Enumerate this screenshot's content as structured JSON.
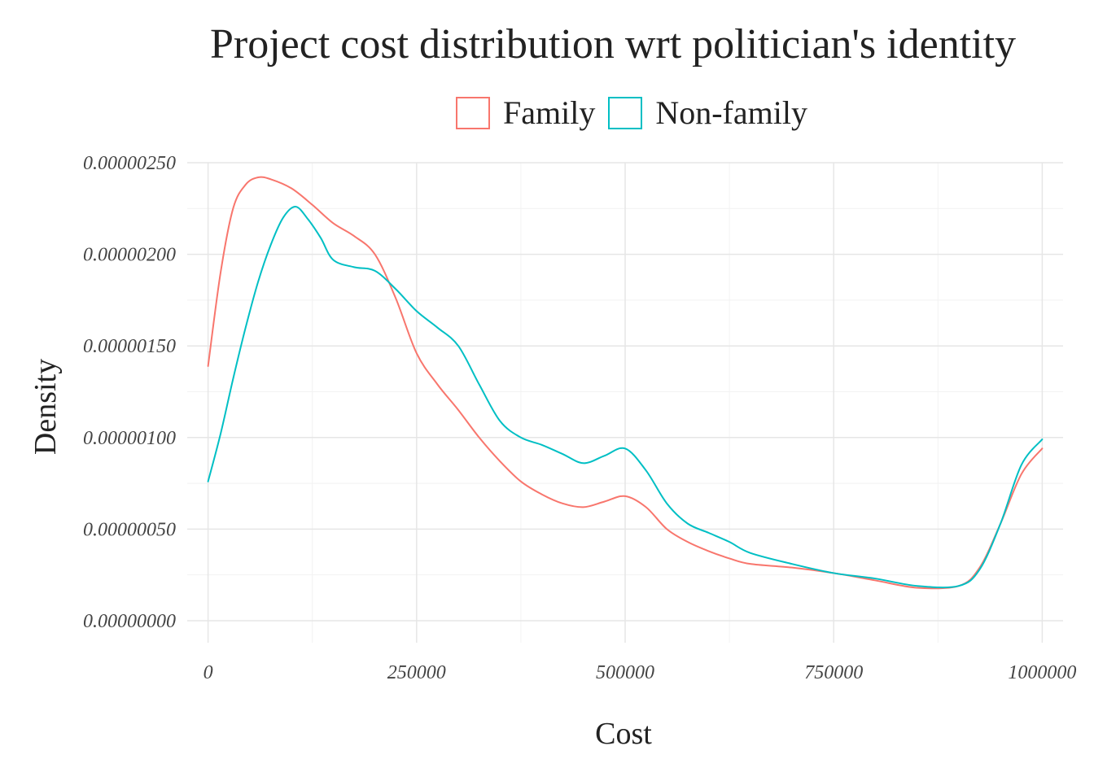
{
  "chart_data": {
    "type": "line",
    "title": "Project cost distribution wrt politician's identity",
    "xlabel": "Cost",
    "ylabel": "Density",
    "xlim": [
      -25000,
      1025000
    ],
    "ylim": [
      -1.2e-07,
      2.5e-06
    ],
    "x_ticks": [
      0,
      250000,
      500000,
      750000,
      1000000
    ],
    "x_tick_labels": [
      "0",
      "250000",
      "500000",
      "750000",
      "1000000"
    ],
    "y_ticks": [
      0,
      5e-07,
      1e-06,
      1.5e-06,
      2e-06,
      2.5e-06
    ],
    "y_tick_labels": [
      "0.00000000",
      "0.00000050",
      "0.00000100",
      "0.00000150",
      "0.00000200",
      "0.00000250"
    ],
    "legend_position": "top",
    "grid": true,
    "series": [
      {
        "name": "Family",
        "color": "#F8766D",
        "x": [
          0,
          15000,
          30000,
          45000,
          60000,
          75000,
          100000,
          125000,
          150000,
          175000,
          200000,
          225000,
          250000,
          275000,
          300000,
          325000,
          350000,
          375000,
          400000,
          425000,
          450000,
          475000,
          500000,
          525000,
          550000,
          575000,
          600000,
          625000,
          650000,
          700000,
          750000,
          800000,
          850000,
          900000,
          925000,
          950000,
          975000,
          1000000
        ],
        "values": [
          1.39e-06,
          1.9e-06,
          2.25e-06,
          2.38e-06,
          2.42e-06,
          2.41e-06,
          2.36e-06,
          2.27e-06,
          2.17e-06,
          2.1e-06,
          2e-06,
          1.76e-06,
          1.46e-06,
          1.29e-06,
          1.15e-06,
          1e-06,
          8.7e-07,
          7.6e-07,
          6.9e-07,
          6.4e-07,
          6.2e-07,
          6.5e-07,
          6.8e-07,
          6.2e-07,
          5e-07,
          4.3e-07,
          3.8e-07,
          3.4e-07,
          3.1e-07,
          2.9e-07,
          2.6e-07,
          2.2e-07,
          1.8e-07,
          1.9e-07,
          2.9e-07,
          5.3e-07,
          8e-07,
          9.4e-07
        ]
      },
      {
        "name": "Non-family",
        "color": "#00BFC4",
        "x": [
          0,
          15000,
          30000,
          45000,
          60000,
          75000,
          90000,
          105000,
          120000,
          135000,
          150000,
          175000,
          200000,
          225000,
          250000,
          275000,
          300000,
          325000,
          350000,
          375000,
          400000,
          425000,
          450000,
          475000,
          500000,
          525000,
          550000,
          575000,
          600000,
          625000,
          650000,
          700000,
          750000,
          800000,
          850000,
          900000,
          925000,
          950000,
          975000,
          1000000
        ],
        "values": [
          7.6e-07,
          1.02e-06,
          1.32e-06,
          1.6e-06,
          1.85e-06,
          2.05e-06,
          2.2e-06,
          2.26e-06,
          2.19e-06,
          2.09e-06,
          1.97e-06,
          1.93e-06,
          1.91e-06,
          1.81e-06,
          1.69e-06,
          1.6e-06,
          1.5e-06,
          1.29e-06,
          1.09e-06,
          1e-06,
          9.6e-07,
          9.1e-07,
          8.6e-07,
          9e-07,
          9.4e-07,
          8.2e-07,
          6.4e-07,
          5.3e-07,
          4.8e-07,
          4.3e-07,
          3.7e-07,
          3.1e-07,
          2.6e-07,
          2.3e-07,
          1.9e-07,
          1.9e-07,
          2.8e-07,
          5.3e-07,
          8.5e-07,
          9.9e-07
        ]
      }
    ]
  }
}
